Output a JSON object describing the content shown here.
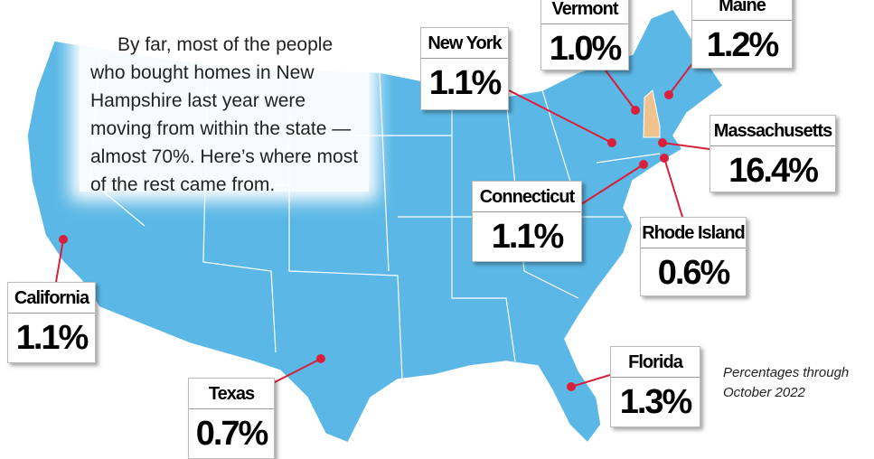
{
  "intro": "By far, most of the people who bought homes in New Hampshire last year were moving from within the state — almost 70%.  Here’s where most of the rest came from.",
  "note": [
    "Percentages through",
    "October 2022"
  ],
  "callouts": [
    {
      "name": "Vermont",
      "value": "1.0%"
    },
    {
      "name": "Maine",
      "value": "1.2%"
    },
    {
      "name": "New York",
      "value": "1.1%"
    },
    {
      "name": "Massachusetts",
      "value": "16.4%"
    },
    {
      "name": "Connecticut",
      "value": "1.1%"
    },
    {
      "name": "Rhode Island",
      "value": "0.6%"
    },
    {
      "name": "California",
      "value": "1.1%"
    },
    {
      "name": "Texas",
      "value": "0.7%"
    },
    {
      "name": "Florida",
      "value": "1.3%"
    }
  ]
}
